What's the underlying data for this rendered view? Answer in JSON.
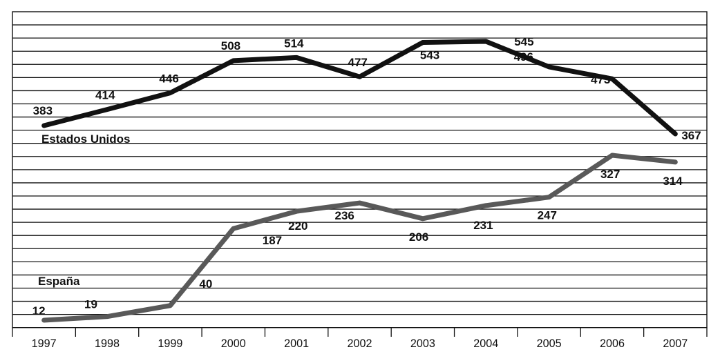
{
  "chart_data": {
    "type": "line",
    "title": "",
    "xlabel": "",
    "ylabel": "",
    "categories": [
      "1997",
      "1998",
      "1999",
      "2000",
      "2001",
      "2002",
      "2003",
      "2004",
      "2005",
      "2006",
      "2007"
    ],
    "series": [
      {
        "name": "Estados Unidos",
        "color": "#111111",
        "values": [
          383,
          414,
          446,
          508,
          514,
          477,
          543,
          545,
          496,
          473,
          367
        ]
      },
      {
        "name": "España",
        "color": "#595959",
        "values": [
          12,
          19,
          40,
          187,
          220,
          236,
          206,
          231,
          247,
          327,
          314
        ]
      }
    ],
    "grid": true,
    "legend": "inline series labels",
    "y_axis_ticks_shown": false
  }
}
